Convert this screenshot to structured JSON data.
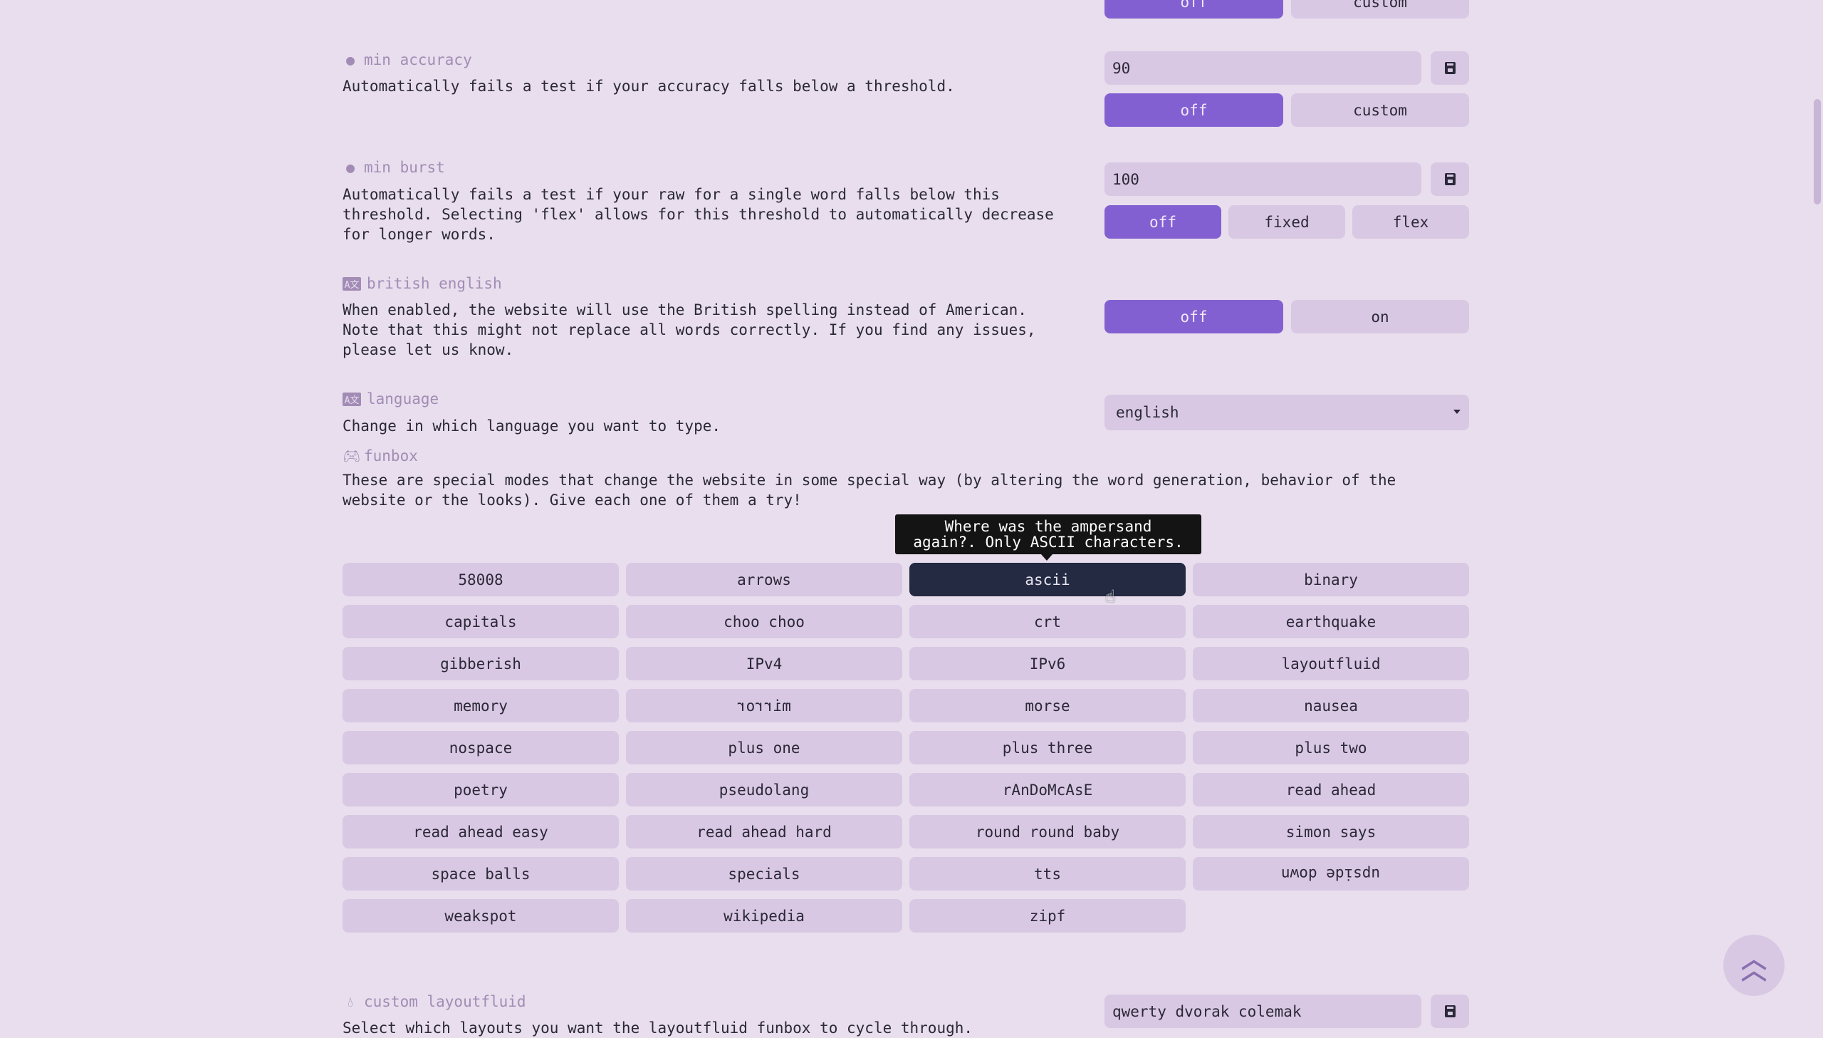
{
  "colors": {
    "background": "#e8deed",
    "button": "#d9c8e3",
    "accent": "#8360d1",
    "text": "#2b2838",
    "sub": "#a28cb5",
    "active_funbox": "#232a42",
    "tooltip": "#141414"
  },
  "top_partial": {
    "buttons": [
      "off",
      "custom"
    ],
    "selected": "off"
  },
  "min_accuracy": {
    "title": "min accuracy",
    "icon": "bomb-icon",
    "description": "Automatically fails a test if your accuracy falls below a threshold.",
    "value": "90",
    "buttons": [
      "off",
      "custom"
    ],
    "selected": "off"
  },
  "min_burst": {
    "title": "min burst",
    "icon": "bomb-icon",
    "description": "Automatically fails a test if your raw for a single word falls below this\nthreshold. Selecting 'flex' allows for this threshold to automatically decrease\nfor longer words.",
    "value": "100",
    "buttons": [
      "off",
      "fixed",
      "flex"
    ],
    "selected": "off"
  },
  "british_english": {
    "title": "british english",
    "icon": "language-icon",
    "description": "When enabled, the website will use the British spelling instead of American.\nNote that this might not replace all words correctly. If you find any issues,\nplease let us know.",
    "buttons": [
      "off",
      "on"
    ],
    "selected": "off"
  },
  "language": {
    "title": "language",
    "icon": "language-icon",
    "description": "Change in which language you want to type.",
    "selected": "english"
  },
  "funbox": {
    "title": "funbox",
    "icon": "gamepad-icon",
    "description": "These are special modes that change the website in some special way (by altering the word generation, behavior of the\nwebsite or the looks). Give each one of them a try!",
    "items": [
      "58008",
      "arrows",
      "ascii",
      "binary",
      "capitals",
      "choo choo",
      "crt",
      "earthquake",
      "gibberish",
      "IPv4",
      "IPv6",
      "layoutfluid",
      "memory",
      "mirror",
      "morse",
      "nausea",
      "nospace",
      "plus one",
      "plus three",
      "plus two",
      "poetry",
      "pseudolang",
      "rAnDoMcAsE",
      "read ahead",
      "read ahead easy",
      "read ahead hard",
      "round round baby",
      "simon says",
      "space balls",
      "specials",
      "tts",
      "upside down",
      "weakspot",
      "wikipedia",
      "zipf"
    ],
    "hovered": "ascii",
    "tooltip": "Where was the ampersand\nagain?. Only ASCII characters."
  },
  "custom_layoutfluid": {
    "title": "custom layoutfluid",
    "icon": "tint-icon",
    "description": "Select which layouts you want the layoutfluid funbox to cycle through.",
    "value": "qwerty dvorak colemak"
  }
}
